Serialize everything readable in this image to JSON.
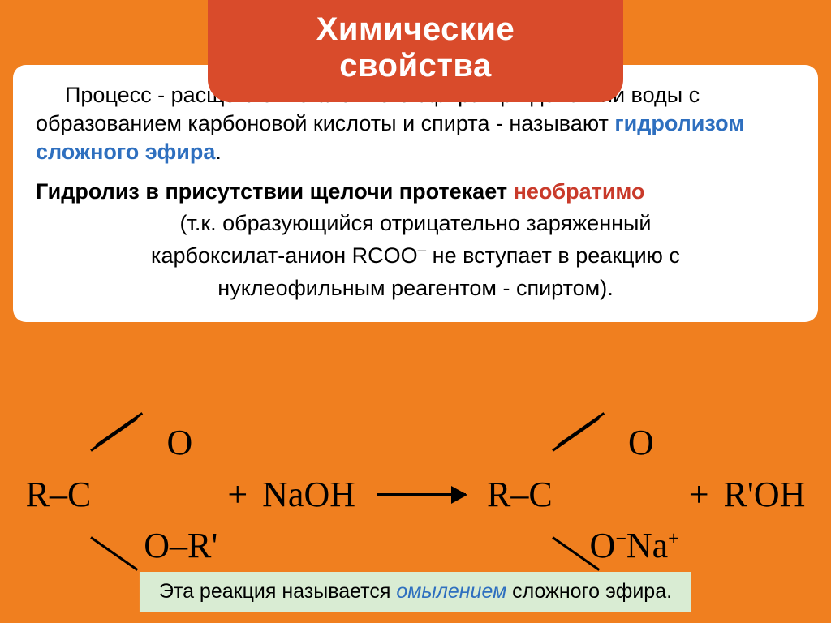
{
  "colors": {
    "slide_bg": "#f07f1f",
    "chip_bg": "#d94b2b",
    "chip_text": "#ffffff",
    "card_bg": "#ffffff",
    "caption_bg": "#d9ecd3",
    "text": "#000000",
    "accentA": "#2e6fbf",
    "accentB": "#c93a2a",
    "caption_em": "#2e6fbf"
  },
  "title": "Химические свойства",
  "para1": {
    "leading": "Процесс - расщепление сложного эфира при действии воды с образованием карбоновой кислоты и спирта - называют ",
    "hl": "гидролизом сложного эфира",
    "tail": "."
  },
  "para2": {
    "pre": "Гидролиз в присутствии щелочи протекает ",
    "hl": "необратимо",
    "post_line1": "(т.к. образующийся отрицательно заряженный",
    "post_line2a": "карбоксилат-анион RCOO",
    "post_line2_sup": "–",
    "post_line2b": " не вступает в реакцию с",
    "post_line3": "нуклеофильным реагентом - спиртом)."
  },
  "reaction": {
    "left": {
      "stem": "R–C",
      "up": "O",
      "down": "O–R'"
    },
    "plus": "+",
    "reagent": "NaOH",
    "right": {
      "stem": "R–C",
      "up": "O",
      "down_pre": "O",
      "down_sup": "−",
      "down_post": "Na",
      "down_post_sup": "+"
    },
    "product2": "R'OH"
  },
  "caption": {
    "pre": "Эта реакция называется ",
    "em": "омылением",
    "post": " сложного эфира."
  }
}
